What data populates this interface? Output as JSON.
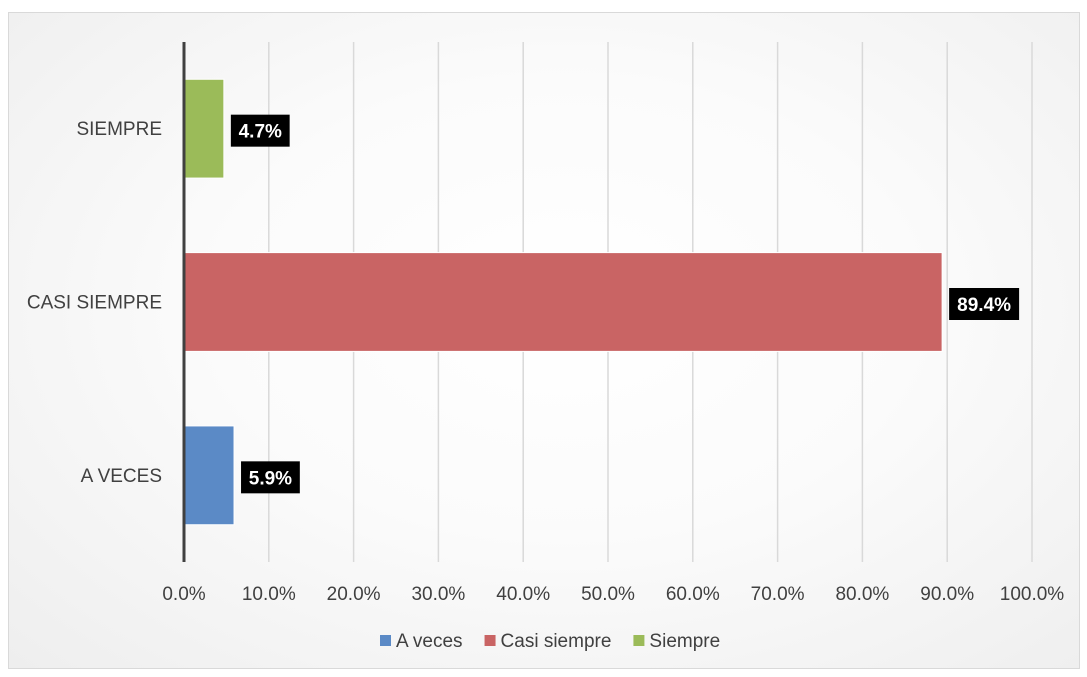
{
  "chart_data": {
    "type": "bar",
    "orientation": "horizontal",
    "categories": [
      "A VECES",
      "CASI SIEMPRE",
      "SIEMPRE"
    ],
    "series": [
      {
        "name": "A veces",
        "category": "A VECES",
        "value": 5.9,
        "label": "5.9%",
        "color": "#5b8ac6"
      },
      {
        "name": "Casi siempre",
        "category": "CASI SIEMPRE",
        "value": 89.4,
        "label": "89.4%",
        "color": "#c96464"
      },
      {
        "name": "Siempre",
        "category": "SIEMPRE",
        "value": 4.7,
        "label": "4.7%",
        "color": "#9bbb59"
      }
    ],
    "xlim": [
      0,
      100
    ],
    "xticks": [
      0,
      10,
      20,
      30,
      40,
      50,
      60,
      70,
      80,
      90,
      100
    ],
    "tick_labels": [
      "0.0%",
      "10.0%",
      "20.0%",
      "30.0%",
      "40.0%",
      "50.0%",
      "60.0%",
      "70.0%",
      "80.0%",
      "90.0%",
      "100.0%"
    ],
    "grid": true,
    "legend_position": "bottom",
    "title": "",
    "xlabel": "",
    "ylabel": "",
    "data_label_style": {
      "background": "#000000",
      "text_color": "#ffffff",
      "bold": true
    }
  }
}
